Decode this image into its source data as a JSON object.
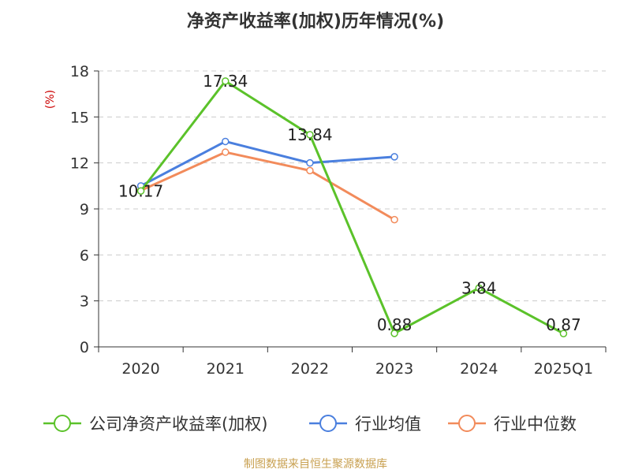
{
  "chart_data": {
    "type": "line",
    "title": "净资产收益率(加权)历年情况(%)",
    "ylabel": "(%)",
    "xlabel": "",
    "categories": [
      "2020",
      "2021",
      "2022",
      "2023",
      "2024",
      "2025Q1"
    ],
    "yticks": [
      "0",
      "3",
      "6",
      "9",
      "12",
      "15",
      "18"
    ],
    "ylim": [
      0,
      18
    ],
    "grid": true,
    "legend_position": "bottom",
    "series": [
      {
        "name": "公司净资产收益率(加权)",
        "color": "#5bc22a",
        "values": [
          10.17,
          17.34,
          13.84,
          0.88,
          3.84,
          0.87
        ],
        "labels": [
          "10.17",
          "17.34",
          "13.84",
          "0.88",
          "3.84",
          "0.87"
        ]
      },
      {
        "name": "行业均值",
        "color": "#4a7fde",
        "values": [
          10.5,
          13.4,
          12.0,
          12.4,
          null,
          null
        ]
      },
      {
        "name": "行业中位数",
        "color": "#f28b5b",
        "values": [
          10.2,
          12.7,
          11.5,
          8.3,
          null,
          null
        ]
      }
    ],
    "source": "制图数据来自恒生聚源数据库"
  },
  "colors": {
    "axis": "#333333",
    "grid": "#cccccc",
    "ylabel": "#cc0000",
    "source": "#c8a050"
  }
}
